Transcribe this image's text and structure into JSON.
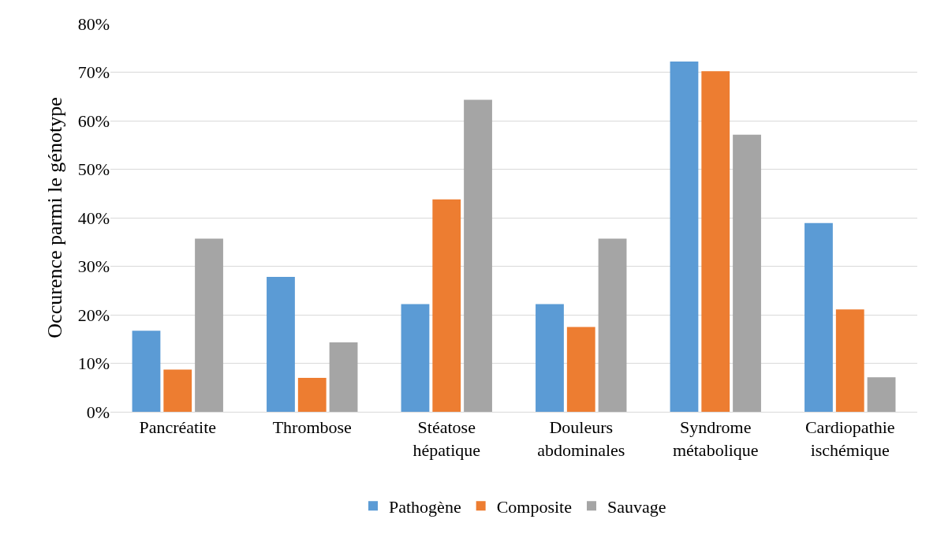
{
  "chart_data": {
    "type": "bar",
    "ylabel": "Occurence parmi le génotype",
    "categories": [
      "Pancréatite",
      "Thrombose",
      "Stéatose hépatique",
      "Douleurs abdominales",
      "Syndrome métabolique",
      "Cardiopathie ischémique"
    ],
    "series": [
      {
        "name": "Pathogène",
        "color": "#5b9bd5",
        "values": [
          16.7,
          27.8,
          22.2,
          22.2,
          72.2,
          38.9
        ]
      },
      {
        "name": "Composite",
        "color": "#ed7d31",
        "values": [
          8.7,
          7.0,
          43.8,
          17.5,
          70.2,
          21.1
        ]
      },
      {
        "name": "Sauvage",
        "color": "#a5a5a5",
        "values": [
          35.7,
          14.3,
          64.3,
          35.7,
          57.1,
          7.1
        ]
      }
    ],
    "ylim": [
      0,
      80
    ],
    "yticks": [
      {
        "value": 0,
        "label": "0%"
      },
      {
        "value": 10,
        "label": "10%"
      },
      {
        "value": 20,
        "label": "20%"
      },
      {
        "value": 30,
        "label": "30%"
      },
      {
        "value": 40,
        "label": "40%"
      },
      {
        "value": 50,
        "label": "50%"
      },
      {
        "value": 60,
        "label": "60%"
      },
      {
        "value": 70,
        "label": "70%"
      },
      {
        "value": 80,
        "label": "80%"
      }
    ],
    "grid": "y",
    "legend": "bottom"
  }
}
